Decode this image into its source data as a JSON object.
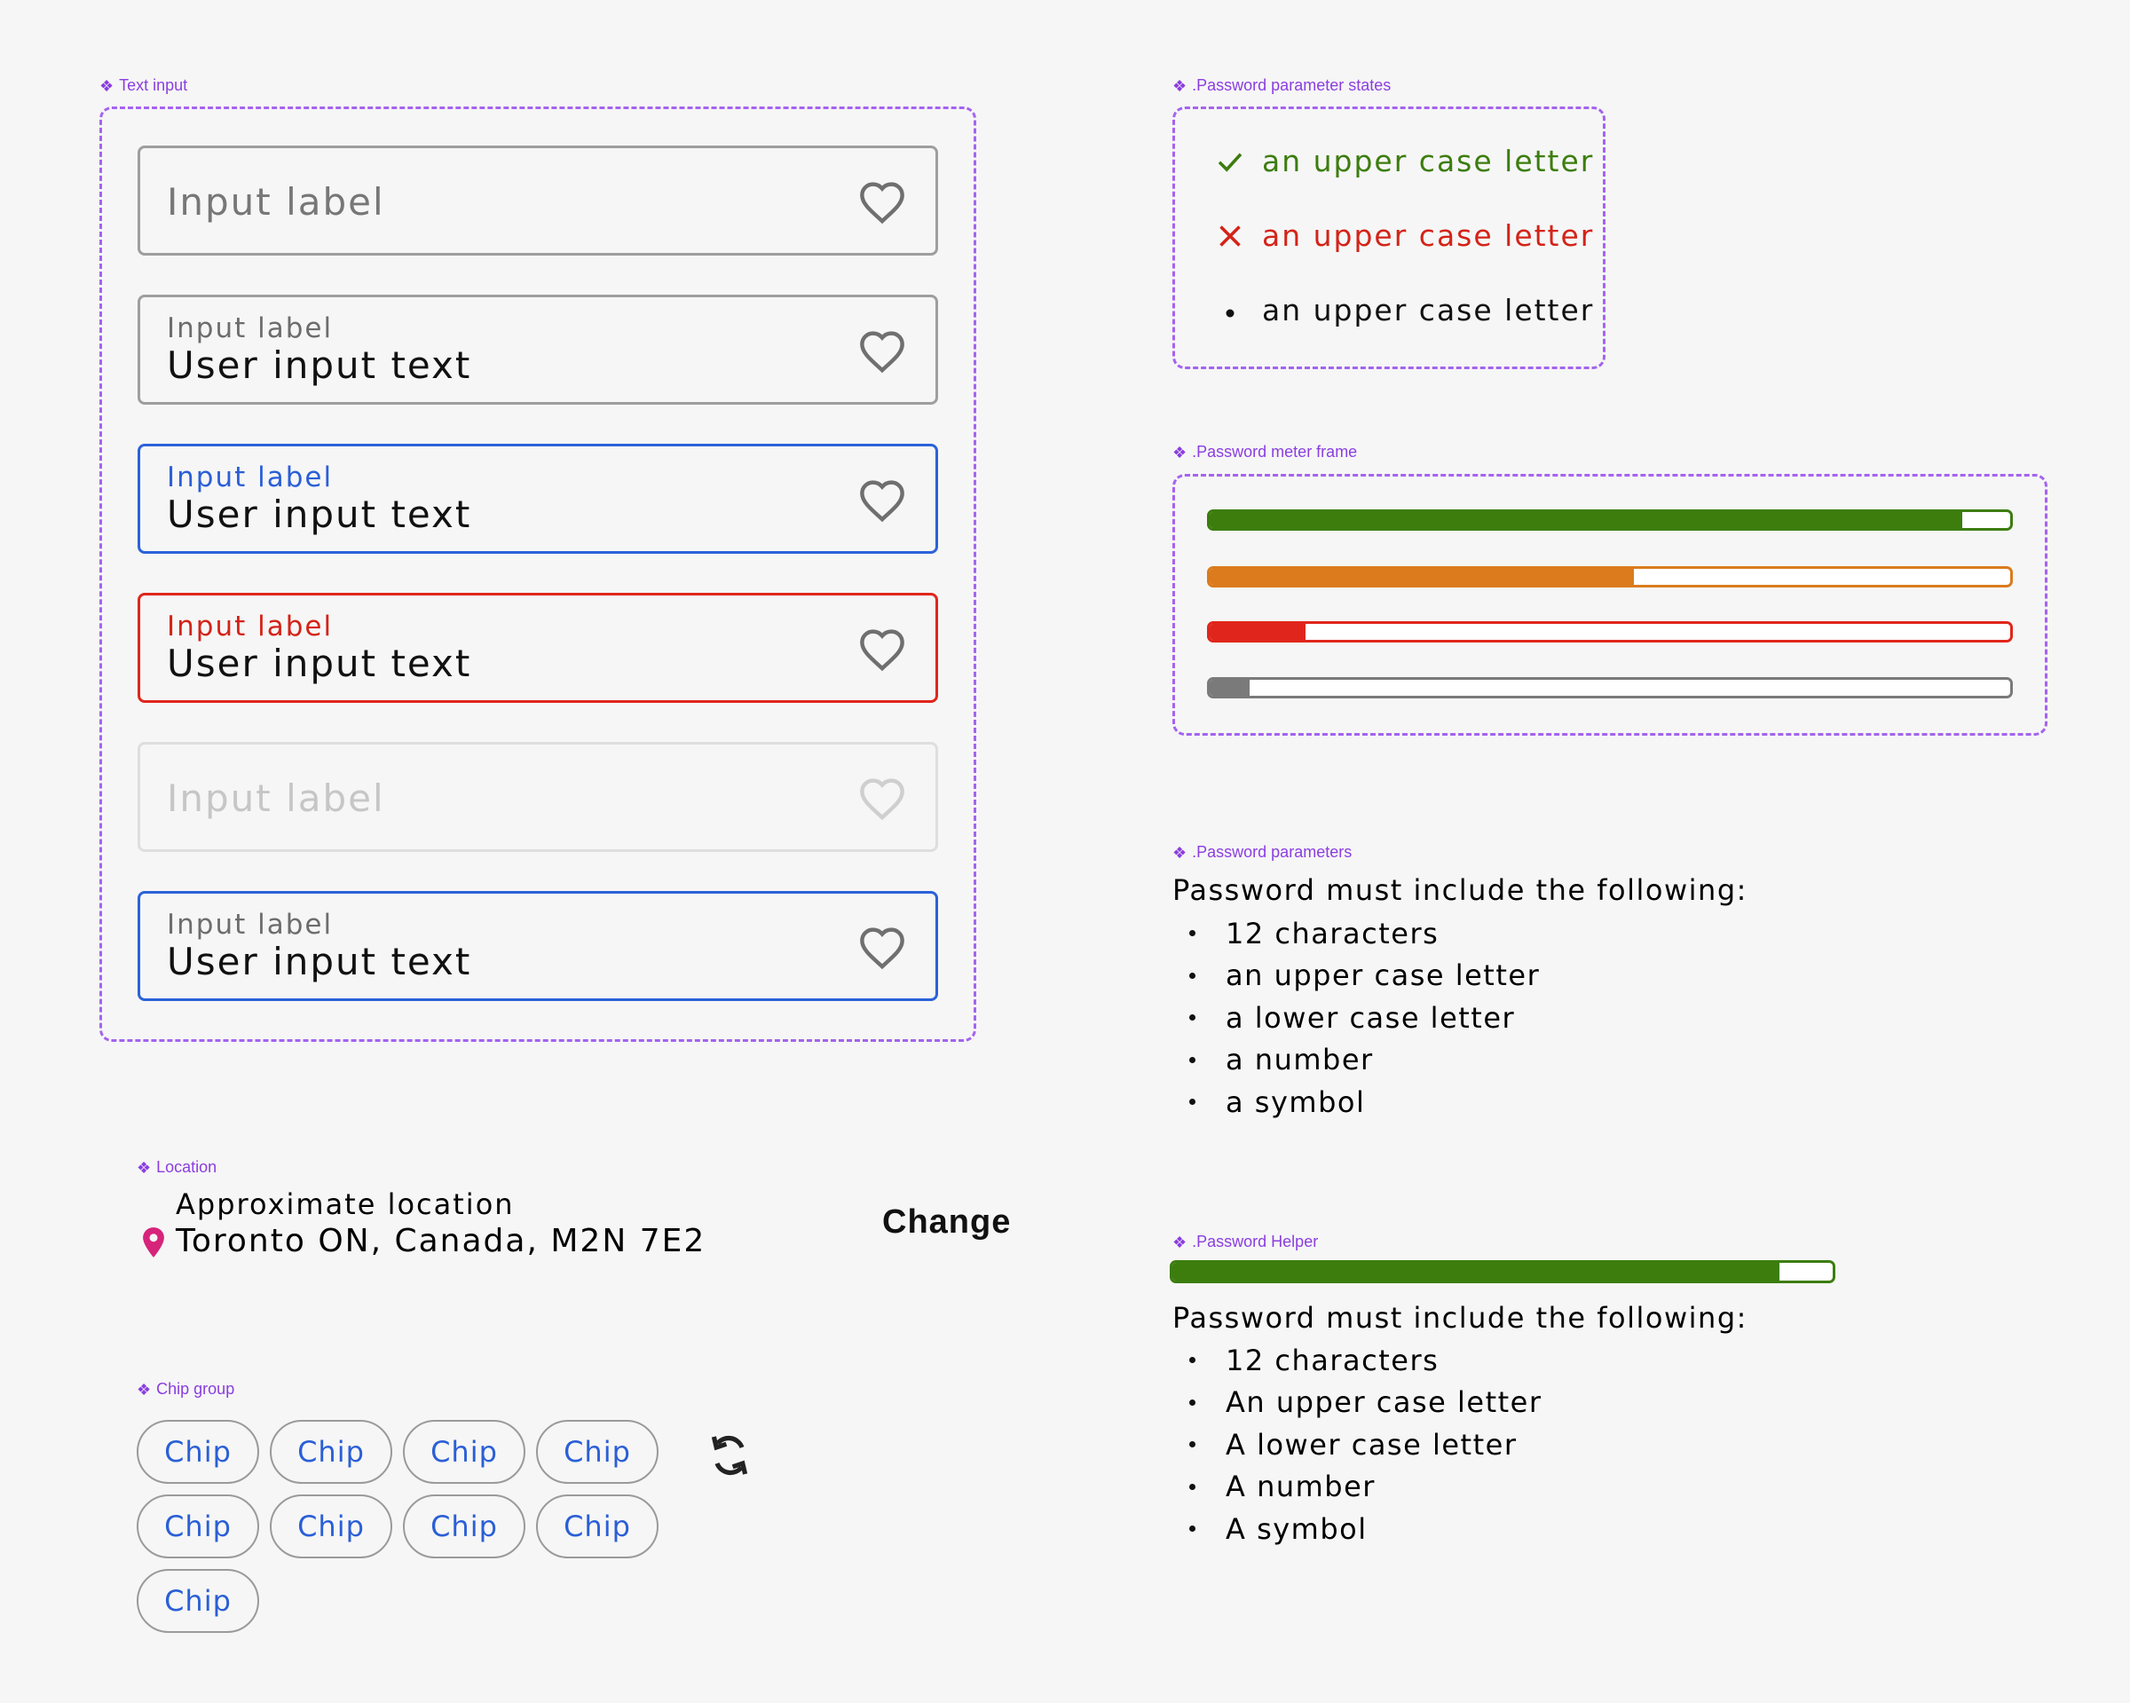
{
  "labels": {
    "text_input": "Text input",
    "password_states": ".Password parameter states",
    "password_meter": ".Password meter frame",
    "password_params": ".Password parameters",
    "location": "Location",
    "chip_group": "Chip group",
    "password_helper": ".Password Helper"
  },
  "text_inputs": [
    {
      "state": "default-empty",
      "label": "Input label",
      "value": ""
    },
    {
      "state": "filled",
      "label": "Input label",
      "value": "User input text"
    },
    {
      "state": "focused",
      "label": "Input label",
      "value": "User input text"
    },
    {
      "state": "error",
      "label": "Input label",
      "value": "User input text"
    },
    {
      "state": "disabled",
      "label": "Input label",
      "value": ""
    },
    {
      "state": "active",
      "label": "Input label",
      "value": "User input text"
    }
  ],
  "password_states": [
    {
      "status": "valid",
      "text": "an upper case letter",
      "color": "#3c7d0e",
      "icon": "check-icon"
    },
    {
      "status": "invalid",
      "text": "an upper case letter",
      "color": "#d42318",
      "icon": "x-icon"
    },
    {
      "status": "neutral",
      "text": "an upper case letter",
      "color": "#111111",
      "icon": "bullet-icon"
    }
  ],
  "password_meters": [
    {
      "strength": "strong",
      "level": 0.94,
      "color": "#3c7d0e"
    },
    {
      "strength": "medium",
      "level": 0.53,
      "color": "#db7b1d"
    },
    {
      "strength": "weak",
      "level": 0.12,
      "color": "#e0261c"
    },
    {
      "strength": "empty",
      "level": 0.05,
      "color": "#7a7a7a"
    }
  ],
  "password_params": {
    "title": "Password must include the following:",
    "items": [
      "12 characters",
      "an upper case letter",
      "a lower case letter",
      "a number",
      "a symbol"
    ]
  },
  "location": {
    "title": "Approximate location",
    "value": "Toronto ON, Canada, M2N 7E2",
    "action": "Change"
  },
  "chips": [
    "Chip",
    "Chip",
    "Chip",
    "Chip",
    "Chip",
    "Chip",
    "Chip",
    "Chip",
    "Chip"
  ],
  "password_helper": {
    "level": 0.92,
    "color": "#3c7d0e",
    "title": "Password must include the following:",
    "items": [
      "12 characters",
      "An upper case letter",
      "A lower case letter",
      "A number",
      "A symbol"
    ]
  },
  "colors": {
    "frame": "#a463f0",
    "label": "#8a3ee0",
    "focus": "#2b62d9",
    "error": "#e0261c",
    "chip_text": "#2a5fd6",
    "pin": "#d6247a"
  }
}
